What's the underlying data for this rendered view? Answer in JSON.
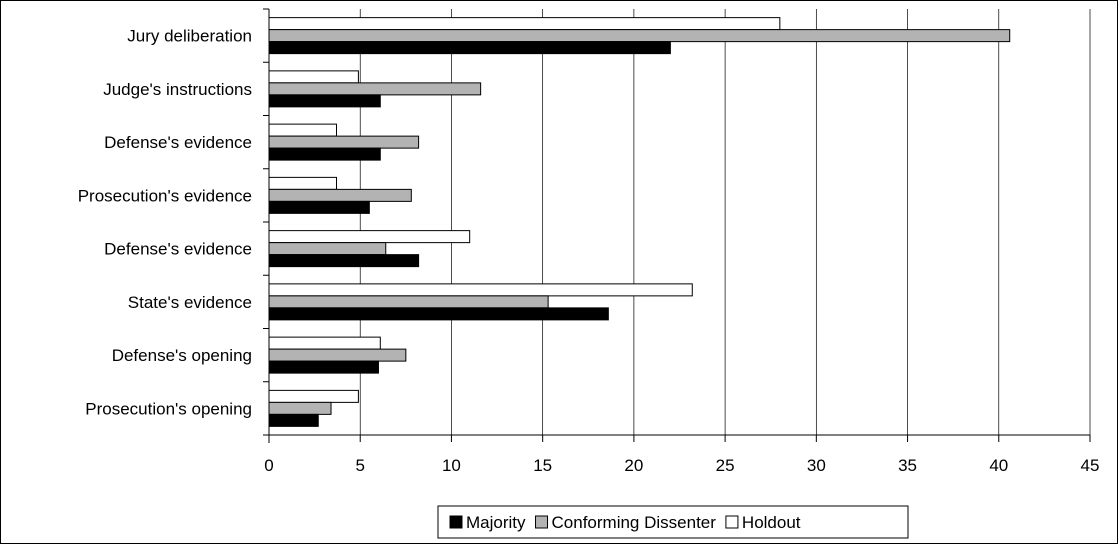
{
  "chart_data": {
    "type": "bar",
    "orientation": "horizontal",
    "categories": [
      "Prosecution's opening",
      "Defense's opening",
      "State's evidence",
      "Defense's evidence",
      "Prosecution's evidence",
      "Defense's evidence",
      "Judge's instructions",
      "Jury deliberation"
    ],
    "series": [
      {
        "name": "Majority",
        "color": "#000000",
        "values": [
          2.7,
          6.0,
          18.6,
          8.2,
          5.5,
          6.1,
          6.1,
          22.0
        ]
      },
      {
        "name": "Conforming Dissenter",
        "color": "#b3b3b3",
        "values": [
          3.4,
          7.5,
          15.3,
          6.4,
          7.8,
          8.2,
          11.6,
          40.6
        ]
      },
      {
        "name": "Holdout",
        "color": "#ffffff",
        "values": [
          4.9,
          6.1,
          23.2,
          11.0,
          3.7,
          3.7,
          4.9,
          28.0
        ]
      }
    ],
    "xticks": [
      "0",
      "5",
      "10",
      "15",
      "20",
      "25",
      "30",
      "35",
      "40",
      "45"
    ],
    "xlim": [
      0,
      45
    ],
    "title": "",
    "xlabel": "",
    "ylabel": "",
    "grid": "vertical",
    "legend_position": "bottom"
  }
}
